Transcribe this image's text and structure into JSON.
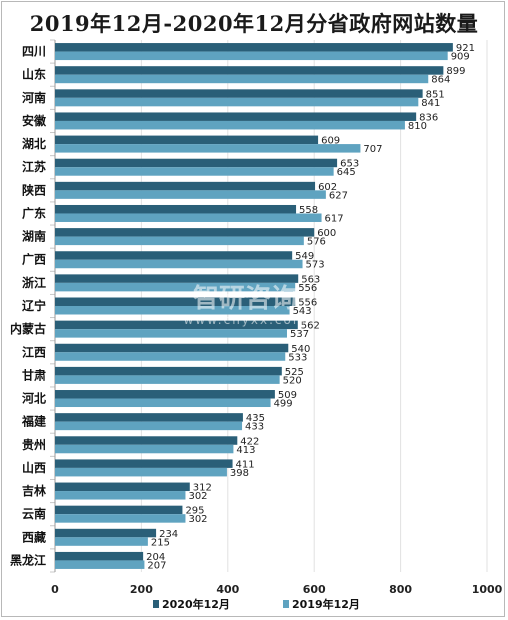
{
  "chart_data": {
    "type": "bar",
    "orientation": "horizontal",
    "title": "2019年12月-2020年12月分省政府网站数量",
    "categories": [
      "四川",
      "山东",
      "河南",
      "安徽",
      "湖北",
      "江苏",
      "陕西",
      "广东",
      "湖南",
      "广西",
      "浙江",
      "辽宁",
      "内蒙古",
      "江西",
      "甘肃",
      "河北",
      "福建",
      "贵州",
      "山西",
      "吉林",
      "云南",
      "西藏",
      "黑龙江"
    ],
    "series": [
      {
        "name": "2020年12月",
        "color": "#2a5f78",
        "values": [
          921,
          899,
          851,
          836,
          609,
          653,
          602,
          558,
          600,
          549,
          563,
          556,
          562,
          540,
          525,
          509,
          435,
          422,
          411,
          312,
          295,
          234,
          204
        ]
      },
      {
        "name": "2019年12月",
        "color": "#5fa3c0",
        "values": [
          909,
          864,
          841,
          810,
          707,
          645,
          627,
          617,
          576,
          573,
          556,
          543,
          537,
          533,
          520,
          499,
          433,
          413,
          398,
          302,
          302,
          215,
          207
        ]
      }
    ],
    "xlim": [
      0,
      1000
    ],
    "xticks": [
      0,
      200,
      400,
      600,
      800,
      1000
    ],
    "grid": true,
    "legend_position": "bottom",
    "watermark": {
      "brand": "智研咨询",
      "url": "www.chyxx.com"
    }
  }
}
